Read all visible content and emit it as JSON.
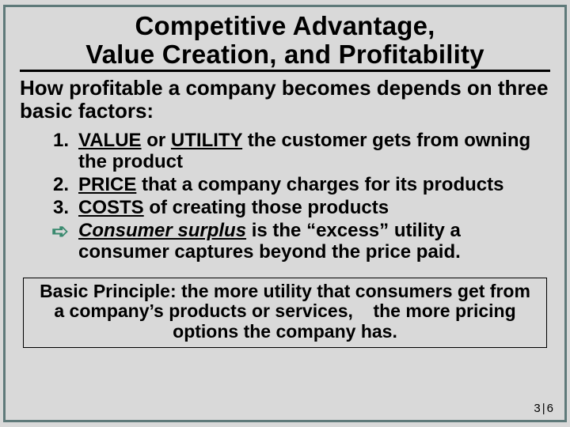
{
  "title_line1": "Competitive Advantage,",
  "title_line2": "Value Creation, and Profitability",
  "lead": "How profitable a company becomes depends on three basic factors:",
  "points": [
    {
      "marker": "1.",
      "html": "<span class='u'>VALUE</span> or <span class='u'>UTILITY</span> the customer gets from owning the product"
    },
    {
      "marker": "2.",
      "html": "<span class='u'>PRICE</span> that a company charges for its products"
    },
    {
      "marker": "3.",
      "html": "<span class='u'>COSTS</span> of creating those products"
    },
    {
      "marker": "➪",
      "arrow": true,
      "html": "<span class='it u'>Consumer surplus</span> is the “excess” utility a consumer captures beyond the price paid."
    }
  ],
  "principle": "Basic Principle: the more utility that consumers get from a company’s products or services,    the more pricing options the company has.",
  "page": {
    "current": "3",
    "sep": "|",
    "total": "6"
  },
  "colors": {
    "background": "#d9d9d9",
    "border": "#5f7a7a",
    "text": "#000000",
    "arrow": "#3a8a6f"
  },
  "fontsizes_pt": {
    "title": 33,
    "lead": 26,
    "points": 24,
    "principle": 23,
    "pagenum": 15
  }
}
